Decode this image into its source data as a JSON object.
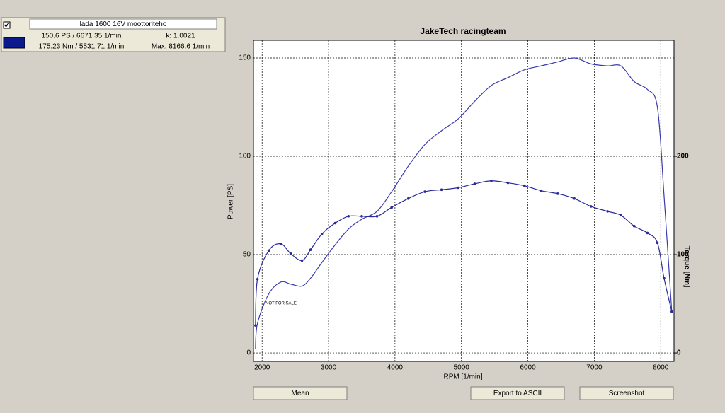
{
  "panel": {
    "checked": true,
    "name": "lada 1600 16V moottoriteho",
    "color": "#0a1a8c",
    "power_info": "150.6 PS / 6671.35 1/min",
    "k_info": "k: 1.0021",
    "torque_info": "175.23 Nm / 5531.71 1/min",
    "max_info": "Max: 8166.6 1/min"
  },
  "chart_data": {
    "type": "line",
    "title": "JakeTech racingteam",
    "watermark": "NOT FOR SALE",
    "xlabel": "RPM [1/min]",
    "ylabel": "Power [PS]",
    "y2label": "Torque [Nm]",
    "x": [
      1900,
      1930,
      2100,
      2280,
      2430,
      2600,
      2730,
      2900,
      3100,
      3300,
      3500,
      3730,
      3950,
      4200,
      4450,
      4700,
      4950,
      5200,
      5450,
      5700,
      5950,
      6200,
      6450,
      6700,
      6950,
      7200,
      7400,
      7600,
      7800,
      7950,
      8050,
      8166
    ],
    "series": [
      {
        "color": "#3a3ab0",
        "markers": false,
        "values": [
          2,
          15,
          30,
          36,
          35,
          34,
          38,
          46,
          55,
          63,
          68,
          72,
          82,
          95,
          106,
          113,
          119,
          128,
          136,
          140,
          144,
          146,
          148,
          150,
          147,
          146,
          146,
          138,
          134,
          125,
          80,
          21
        ]
      },
      {
        "color": "#2a2a9a",
        "markers": true,
        "axis": "y2",
        "values": [
          28,
          75,
          104,
          111,
          101,
          94,
          105,
          121,
          132,
          139,
          139,
          139,
          148,
          157,
          164,
          166,
          168,
          172,
          175,
          173,
          170,
          165,
          162,
          157,
          149,
          144,
          140,
          129,
          122,
          112,
          76,
          42
        ]
      }
    ],
    "xlim": [
      1870,
      8200
    ],
    "ylim": [
      -4.3,
      159
    ],
    "y2lim": [
      -8.6,
      318
    ],
    "xticks": [
      2000,
      3000,
      4000,
      5000,
      6000,
      7000,
      8000
    ],
    "yticks": [
      0,
      50,
      100,
      150
    ],
    "y2ticks": [
      0,
      100,
      200
    ],
    "grid": true
  },
  "buttons": [
    "Mean",
    "Export to ASCII",
    "Screenshot"
  ]
}
